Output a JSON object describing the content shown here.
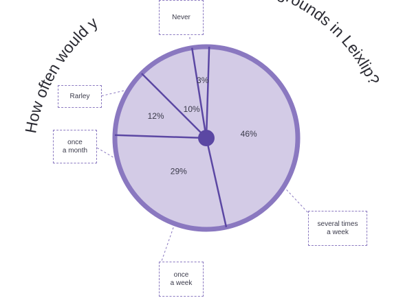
{
  "chart_data": {
    "type": "pie",
    "title_left": "How often would y",
    "title_right": "ygrounds in Leixlip?",
    "slices": [
      {
        "label": "several times\na week",
        "value": 46,
        "pct_text": "46%"
      },
      {
        "label": "once\na week",
        "value": 29,
        "pct_text": "29%"
      },
      {
        "label": "once\na month",
        "value": 12,
        "pct_text": "12%"
      },
      {
        "label": "Rarley",
        "value": 10,
        "pct_text": "10%"
      },
      {
        "label": "Never",
        "value": 3,
        "pct_text": "3%"
      }
    ]
  },
  "colors": {
    "fill": "#d3cbe6",
    "outer_ring": "#8a78c0",
    "divider": "#5b47a3",
    "hub": "#5b47a3",
    "callout_border": "#8a78c0",
    "title_text": "#2b2b33"
  }
}
